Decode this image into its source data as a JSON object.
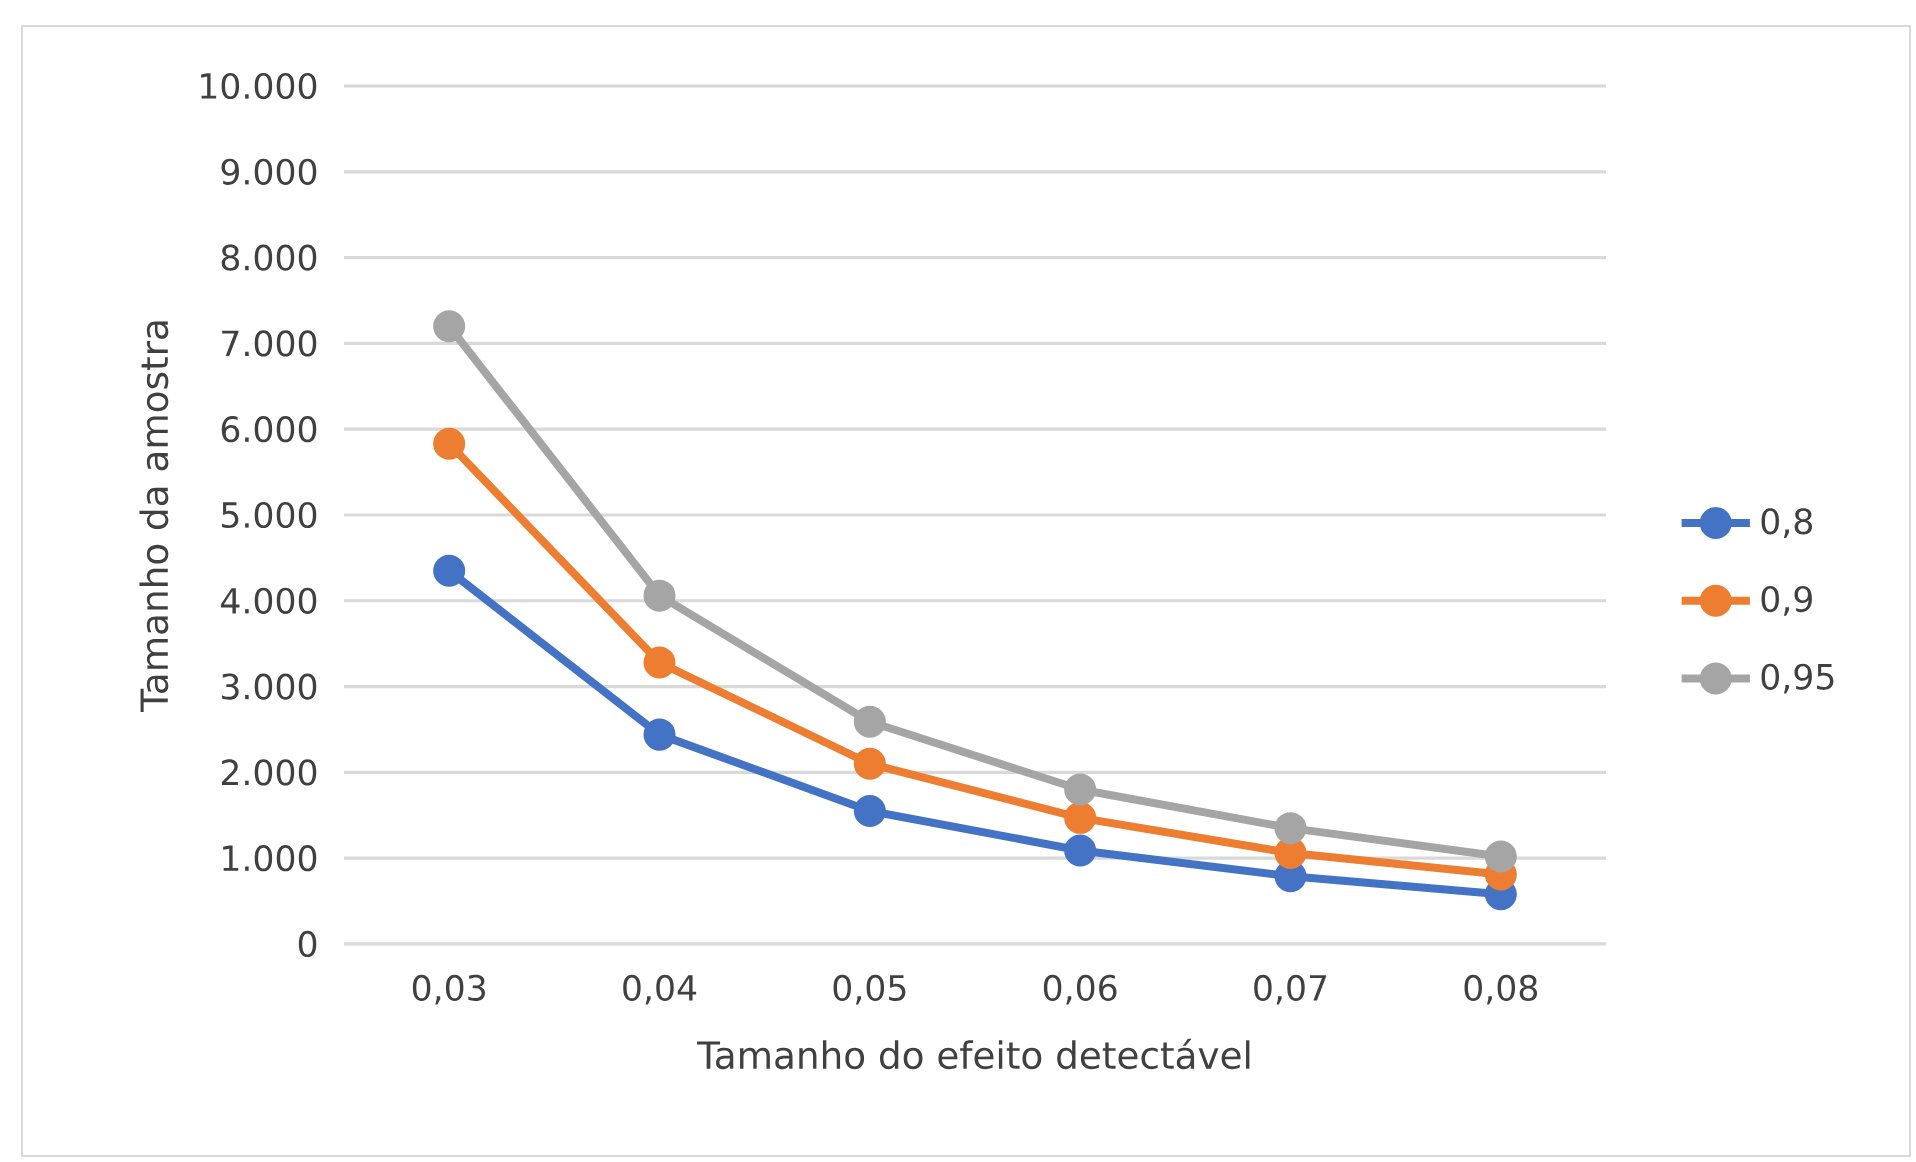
{
  "chart_data": {
    "type": "line",
    "xlabel": "Tamanho do efeito detectável",
    "ylabel": "Tamanho da amostra",
    "categories": [
      "0,03",
      "0,04",
      "0,05",
      "0,06",
      "0,07",
      "0,08"
    ],
    "series": [
      {
        "name": "0,8",
        "color": "#4472c4",
        "values": [
          4350,
          2440,
          1550,
          1090,
          790,
          580
        ]
      },
      {
        "name": "0,9",
        "color": "#ed7d31",
        "values": [
          5830,
          3280,
          2100,
          1470,
          1060,
          810
        ]
      },
      {
        "name": "0,95",
        "color": "#a5a5a5",
        "values": [
          7200,
          4060,
          2590,
          1800,
          1350,
          1020
        ]
      }
    ],
    "ylim": [
      0,
      10000
    ],
    "yticks": [
      0,
      {
        "value": 1000,
        "label": "1.000"
      },
      {
        "value": 2000,
        "label": "2.000"
      },
      {
        "value": 3000,
        "label": "3.000"
      },
      {
        "value": 4000,
        "label": "4.000"
      },
      {
        "value": 5000,
        "label": "5.000"
      },
      {
        "value": 6000,
        "label": "6.000"
      },
      {
        "value": 7000,
        "label": "7.000"
      },
      {
        "value": 8000,
        "label": "8.000"
      },
      {
        "value": 9000,
        "label": "9.000"
      },
      {
        "value": 10000,
        "label": "10.000"
      }
    ],
    "grid": "y",
    "legend": "right",
    "marker": "circle",
    "line_style": "solid"
  }
}
